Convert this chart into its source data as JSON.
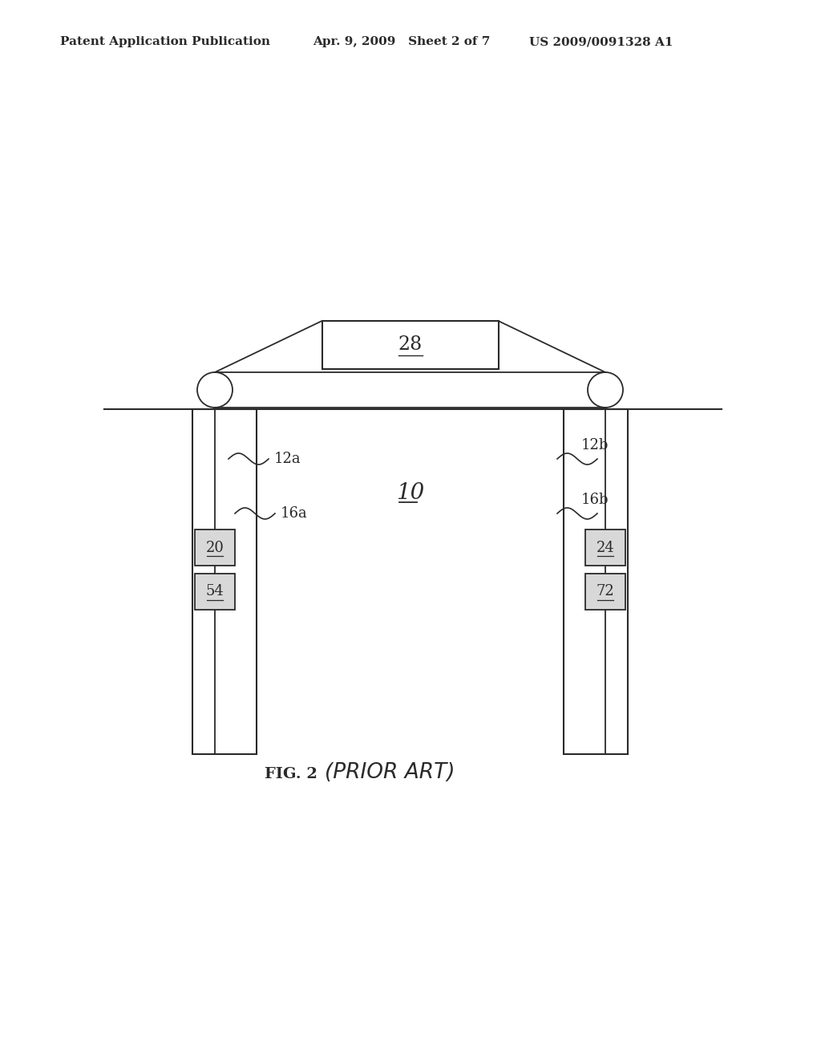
{
  "background_color": "#ffffff",
  "header_left": "Patent Application Publication",
  "header_mid": "Apr. 9, 2009   Sheet 2 of 7",
  "header_right": "US 2009/0091328 A1",
  "fig_label": "FIG. 2",
  "fig_label_suffix": "(PRIOR ART)",
  "label_28": "28",
  "label_12a": "12a",
  "label_12b": "12b",
  "label_16a": "16a",
  "label_16b": "16b",
  "label_10": "10",
  "label_20": "20",
  "label_24": "24",
  "label_54": "54",
  "label_72": "72",
  "line_color": "#2a2a2a",
  "box_fill": "#d8d8d8",
  "box_edge": "#2a2a2a",
  "col_fill": "#ffffff"
}
